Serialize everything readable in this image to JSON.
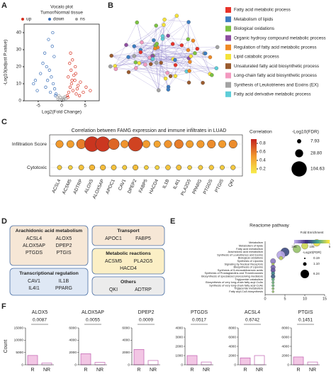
{
  "panel_labels": [
    "A",
    "B",
    "C",
    "D",
    "E",
    "F"
  ],
  "network": {
    "legend": [
      {
        "label": "Fatty acid metabolic process",
        "color": "#e8332a"
      },
      {
        "label": "Metabolism of lipids",
        "color": "#3d7ec2"
      },
      {
        "label": "Biological oxidations",
        "color": "#7cc242"
      },
      {
        "label": "Organic hydroxy compound metabolic process",
        "color": "#8e4ea0"
      },
      {
        "label": "Regulation of fatty acid metabolic process",
        "color": "#f08a24"
      },
      {
        "label": "Lipid catabolic process",
        "color": "#f4e23a"
      },
      {
        "label": "Unsaturated fatty acid biosynthetic process",
        "color": "#9a5b2e"
      },
      {
        "label": "Long-chain fatty acid biosynthetic process",
        "color": "#f39ac0"
      },
      {
        "label": "Synthesis of Leukotrienes and Eoxins (EX)",
        "color": "#a3a3a3"
      },
      {
        "label": "Fatty acid derivative metabolic process",
        "color": "#5ecdd8"
      }
    ]
  },
  "groups": [
    {
      "title": "Arachidonic acid metabolism",
      "genes": [
        "ACSL4",
        "ALOX5",
        "ALOX5AP",
        "DPEP2",
        "PTGDS",
        "PTGIS"
      ],
      "color": "#f6e7d6"
    },
    {
      "title": "Transcriptional regulation",
      "genes": [
        "CAV1",
        "IL1B",
        "IL4I1",
        "PPARG"
      ],
      "color": "#dfe8f5"
    },
    {
      "title": "Transport",
      "genes": [
        "APOC1",
        "FABP5"
      ],
      "color": "#f6e7d6"
    },
    {
      "title": "Metabolic reactions",
      "genes": [
        "ACSM5",
        "PLA2G5",
        "HACD4"
      ],
      "color": "#fbefc5"
    },
    {
      "title": "Others",
      "genes": [
        "QKI",
        "ADTRP"
      ],
      "color": "#ececec"
    }
  ],
  "chart_data": [
    {
      "type": "scatter",
      "title": "Vocalo plot",
      "subtitle": "Tumor/Normal tissue",
      "x_label": "Log2(Fold Change)",
      "y_label": "-Log10(adjust P.value)",
      "xlim": [
        -8,
        8
      ],
      "ylim": [
        0,
        45
      ],
      "xticks": [
        -5,
        0,
        5
      ],
      "yticks": [
        0,
        10,
        20,
        30,
        40
      ],
      "legend": "top",
      "series": [
        {
          "name": "up",
          "color": "#d7301f",
          "x": [
            1.2,
            1.5,
            1.8,
            2.1,
            2.4,
            2.8,
            3.1,
            3.5,
            1.4,
            2.0,
            2.6,
            3.3,
            4.0,
            4.6,
            1.7,
            2.3,
            5.2,
            3.8,
            1.3,
            2.9,
            6.1,
            1.9,
            2.2,
            3.0
          ],
          "values": [
            3,
            5,
            8,
            10,
            6,
            12,
            4,
            9,
            14,
            18,
            15,
            7,
            11,
            5,
            22,
            24,
            8,
            3,
            2,
            20,
            6,
            28,
            12,
            16
          ]
        },
        {
          "name": "down",
          "color": "#3a6fb8",
          "x": [
            -1.2,
            -1.5,
            -1.8,
            -2.2,
            -2.6,
            -3.0,
            -3.4,
            -4.0,
            -4.5,
            -5.2,
            -1.6,
            -2.0,
            -2.8,
            -3.6,
            -1.3,
            -2.4,
            -6.0,
            -1.9,
            -3.2,
            -5.6
          ],
          "values": [
            4,
            7,
            10,
            14,
            18,
            12,
            8,
            22,
            16,
            6,
            26,
            32,
            36,
            28,
            3,
            5,
            10,
            40,
            20,
            12
          ]
        },
        {
          "name": "ns",
          "color": "#a0a0a0",
          "x": [
            -0.8,
            -0.5,
            -0.2,
            0.1,
            0.4,
            0.7,
            -0.6,
            0.3,
            0.9,
            -0.9,
            0.0,
            0.6
          ],
          "values": [
            1,
            0.5,
            2,
            1.5,
            0.8,
            2.5,
            3,
            0.3,
            1.2,
            2.2,
            0.6,
            1.8
          ]
        }
      ]
    },
    {
      "type": "bubble",
      "title": "Correlation between FAMG expression and immune infiltrates in LUAD",
      "categories": [
        "ACSL4",
        "ACSM5",
        "ADTRP",
        "ALOX5",
        "ALOX5AP",
        "APOC1",
        "CAV1",
        "DPEP2",
        "FABP5",
        "HACD4",
        "IL1B",
        "IL4I1",
        "PLA2G5",
        "PPARG",
        "PTGDS",
        "PTGIS",
        "QKI"
      ],
      "rows": [
        "Infiltration Score",
        "Cytotoxic"
      ],
      "color_label": "Correlation",
      "clim": [
        0.1,
        0.9
      ],
      "cticks": [
        0.8,
        0.6,
        0.4,
        0.2
      ],
      "colormap": [
        "#f7e94a",
        "#f29a2e",
        "#c4261d"
      ],
      "size_label": "-Log10(FDR)",
      "size_ticks": [
        7.93,
        {
          "value": 28.8,
          "label": "28.80"
        },
        104.63
      ],
      "series": [
        {
          "name": "Infiltration Score",
          "values": [
            0.5,
            0.48,
            0.6,
            0.85,
            0.84,
            0.68,
            0.52,
            0.8,
            0.5,
            0.45,
            0.52,
            0.6,
            0.48,
            0.5,
            0.55,
            0.5,
            0.55
          ],
          "sizes": [
            25,
            24,
            40,
            100,
            98,
            55,
            26,
            90,
            25,
            20,
            26,
            35,
            24,
            25,
            30,
            25,
            30
          ]
        },
        {
          "name": "Cytotoxic",
          "values": [
            0.25,
            0.22,
            0.3,
            0.35,
            0.33,
            0.3,
            0.25,
            0.32,
            0.22,
            0.2,
            0.28,
            0.3,
            0.22,
            0.25,
            0.27,
            0.24,
            0.26
          ],
          "sizes": [
            9,
            8,
            12,
            14,
            13,
            12,
            9,
            13,
            8,
            8,
            11,
            12,
            8,
            9,
            10,
            9,
            10
          ]
        }
      ]
    },
    {
      "type": "bubble-h",
      "title": "Reactome pathway",
      "categories": [
        "Metabolism",
        "Metabolism of lipids",
        "Fatty acid metabolism",
        "Arachidonic acid metabolism",
        "Synthesis of Leukotrienes and Eoxins",
        "Biological oxidations",
        "Synthesis of Lipoxins",
        "Signaling by Nuclear Receptors",
        "Biosynthesis of Lipoxins",
        "Synthesis of 5-eicosatetraenoic acids",
        "Synthesis of Prostaglandins and Thromboxanes",
        "Biosynthesis of specialized proresolving mediators",
        "Triglyceride catabolism",
        "Biosynthesis of very long-chain fatty acyl-CoAs",
        "Synthesis of very long-chain fatty acyl-CoAs",
        "Triglyceride metabolism",
        "Fatty acyl-CoA biosynthesis"
      ],
      "highlight": [
        3,
        4
      ],
      "highlight_color": "#e8332a",
      "values": [
        13,
        10,
        8,
        5,
        4,
        4,
        2,
        2,
        2,
        2,
        2,
        2,
        2,
        2,
        2,
        2,
        2
      ],
      "sizes": [
        4.2,
        3.8,
        5.2,
        6.2,
        6.0,
        1.2,
        2.4,
        0.6,
        1.9,
        1.8,
        1.1,
        1.5,
        0.7,
        0.6,
        0.6,
        0.5,
        0.4
      ],
      "folds": [
        10,
        20,
        40,
        120,
        205,
        25,
        180,
        30,
        170,
        160,
        90,
        110,
        60,
        55,
        55,
        45,
        40
      ],
      "xlim": [
        0,
        15
      ],
      "xticks": [
        0,
        5,
        10,
        15
      ],
      "color_label": "Fold Enrichment",
      "clim": [
        5,
        205
      ],
      "cticks": [
        205,
        105,
        5
      ],
      "colormap": [
        "#f6e443",
        "#3fa38e",
        "#3d2a7c",
        "#b8a7e6"
      ],
      "size_label": "-Log10(FDR)",
      "size_ticks": [
        0.19,
        {
          "value": 1.1,
          "label": "1.10"
        },
        6.24
      ]
    },
    {
      "type": "bar",
      "title": "ALOX5",
      "y_label": "Count",
      "categories": [
        "R",
        "NR"
      ],
      "values": [
        3800,
        700
      ],
      "ylim": [
        0,
        15000
      ],
      "yticks": [
        0,
        5000,
        10000,
        15000
      ],
      "annotation": "0.0087",
      "colors": [
        "#f2c6e4",
        "#ffffff"
      ]
    },
    {
      "type": "bar",
      "title": "ALOX5AP",
      "categories": [
        "R",
        "NR"
      ],
      "values": [
        1800,
        400
      ],
      "ylim": [
        0,
        6000
      ],
      "yticks": [
        0,
        2000,
        4000,
        6000
      ],
      "annotation": "0.0055",
      "colors": [
        "#f2c6e4",
        "#ffffff"
      ]
    },
    {
      "type": "bar",
      "title": "DPEP2",
      "categories": [
        "R",
        "NR"
      ],
      "values": [
        2500,
        700
      ],
      "ylim": [
        0,
        6000
      ],
      "yticks": [
        0,
        2000,
        4000,
        6000
      ],
      "annotation": "0.0009",
      "colors": [
        "#f2c6e4",
        "#ffffff"
      ]
    },
    {
      "type": "bar",
      "title": "PTGDS",
      "categories": [
        "R",
        "NR"
      ],
      "values": [
        1000,
        300
      ],
      "ylim": [
        0,
        4000
      ],
      "yticks": [
        0,
        1000,
        2000,
        3000,
        4000
      ],
      "annotation": "0.0517",
      "colors": [
        "#f2c6e4",
        "#ffffff"
      ]
    },
    {
      "type": "bar",
      "title": "ACSL4",
      "categories": [
        "R",
        "NR"
      ],
      "values": [
        1500,
        2000
      ],
      "ylim": [
        0,
        8000
      ],
      "yticks": [
        0,
        2000,
        4000,
        6000,
        8000
      ],
      "annotation": "0.6742",
      "colors": [
        "#f2c6e4",
        "#ffffff"
      ]
    },
    {
      "type": "bar",
      "title": "PTGIS",
      "categories": [
        "R",
        "NR"
      ],
      "values": [
        1700,
        600
      ],
      "ylim": [
        0,
        8000
      ],
      "yticks": [
        0,
        2000,
        4000,
        6000,
        8000
      ],
      "annotation": "0.1451",
      "colors": [
        "#f2c6e4",
        "#ffffff"
      ]
    }
  ]
}
